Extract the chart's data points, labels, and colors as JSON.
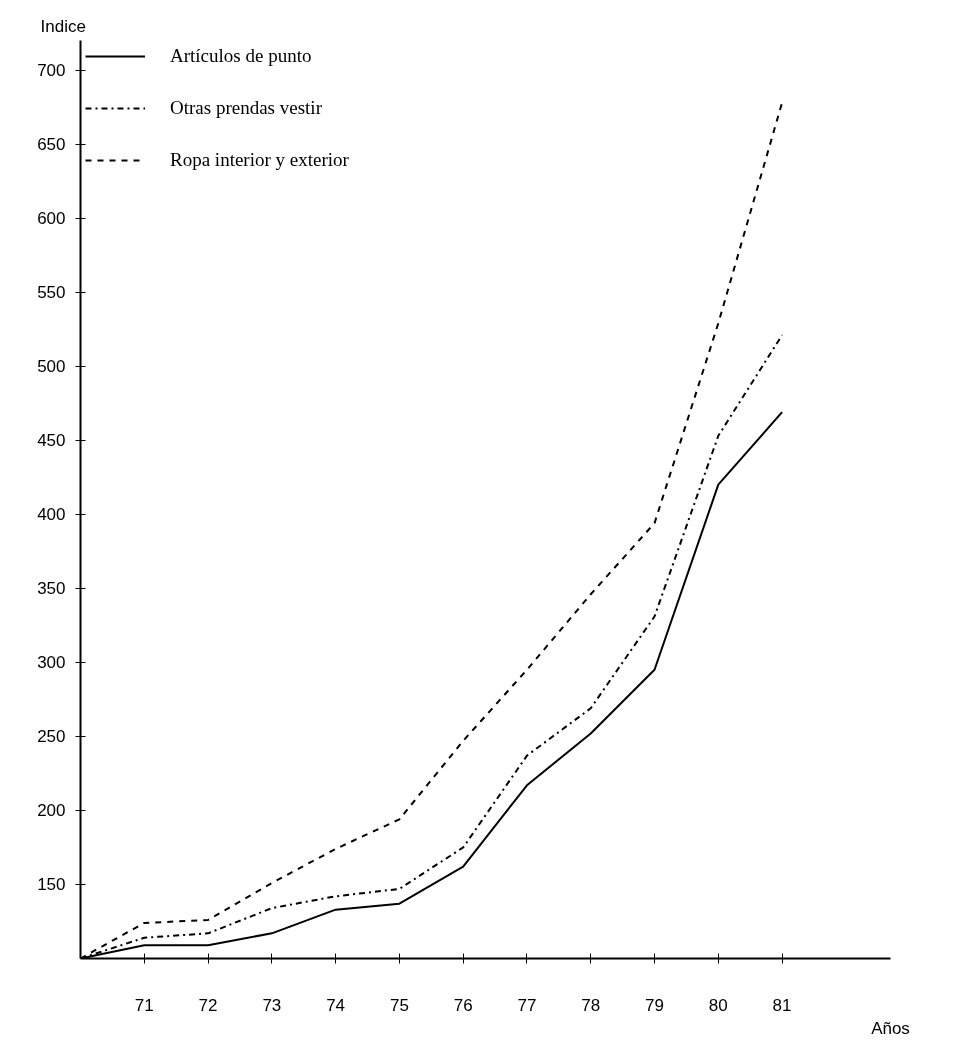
{
  "chart_data": {
    "type": "line",
    "xlabel": "Años",
    "ylabel": "Indice",
    "x": [
      70,
      71,
      72,
      73,
      74,
      75,
      76,
      77,
      78,
      79,
      80,
      81
    ],
    "series": [
      {
        "name": "Artículos de punto",
        "color": "#000000",
        "line_style": "solid",
        "values": [
          100,
          109,
          109,
          117,
          133,
          137,
          162,
          217,
          252,
          295,
          420,
          469
        ]
      },
      {
        "name": "Otras prendas vestir",
        "color": "#000000",
        "line_style": "dashdot",
        "values": [
          100,
          114,
          117,
          134,
          142,
          147,
          175,
          237,
          269,
          331,
          453,
          521
        ]
      },
      {
        "name": "Ropa interior y exterior",
        "color": "#000000",
        "line_style": "dashed",
        "values": [
          100,
          124,
          126,
          151,
          174,
          194,
          247,
          295,
          346,
          394,
          529,
          678
        ]
      }
    ],
    "xlim": [
      70,
      82.7
    ],
    "ylim": [
      100,
      720
    ],
    "xticks": [
      71,
      72,
      73,
      74,
      75,
      76,
      77,
      78,
      79,
      80,
      81
    ],
    "yticks": [
      150,
      200,
      250,
      300,
      350,
      400,
      450,
      500,
      550,
      600,
      650,
      700
    ],
    "grid": false,
    "legend": "top left"
  }
}
